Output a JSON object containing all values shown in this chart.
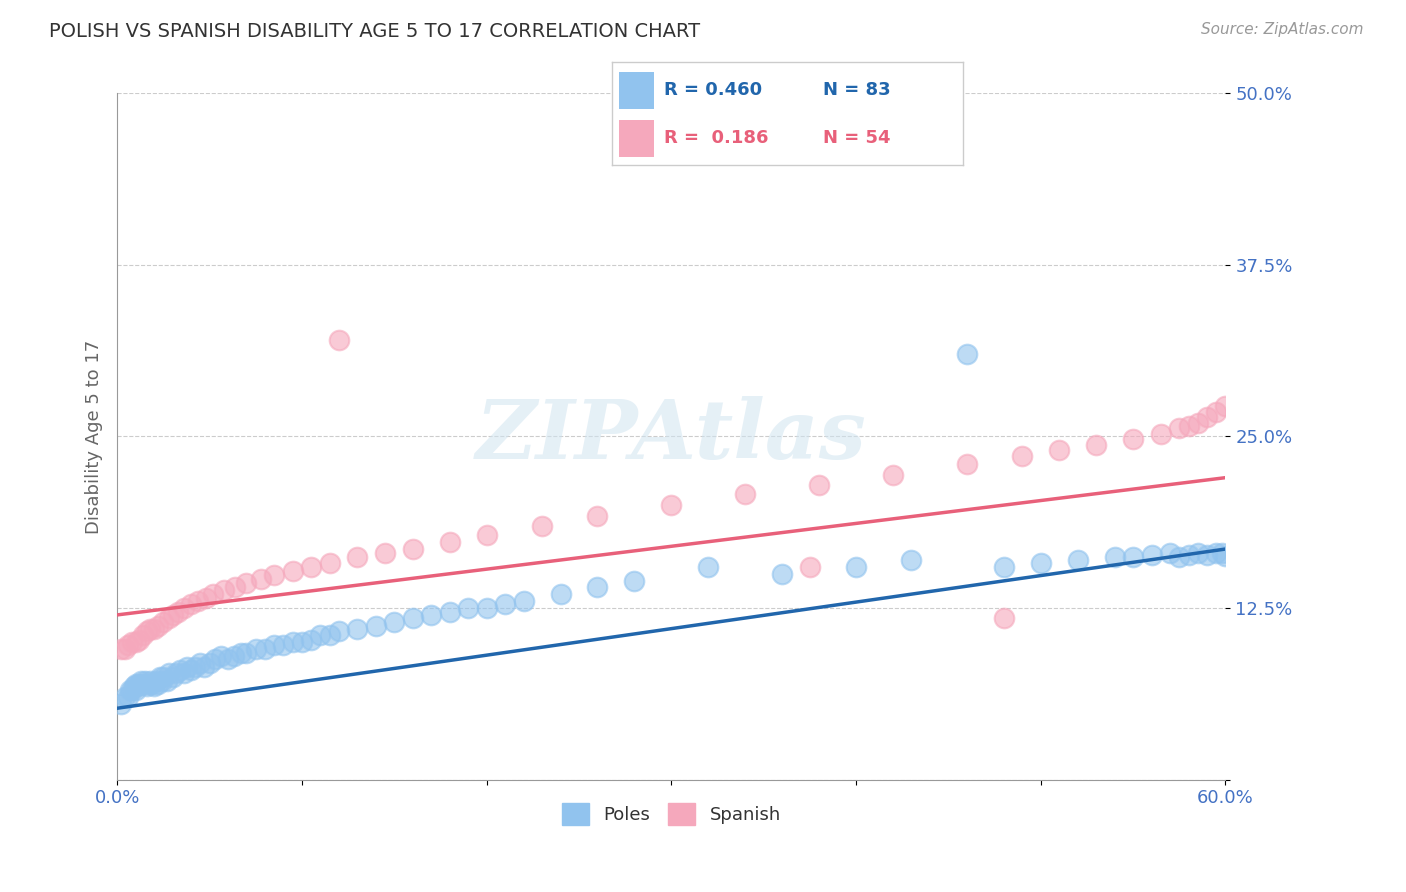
{
  "title": "POLISH VS SPANISH DISABILITY AGE 5 TO 17 CORRELATION CHART",
  "source_text": "Source: ZipAtlas.com",
  "ylabel": "Disability Age 5 to 17",
  "xlim": [
    0.0,
    0.6
  ],
  "ylim": [
    0.0,
    0.5
  ],
  "xticks": [
    0.0,
    0.1,
    0.2,
    0.3,
    0.4,
    0.5,
    0.6
  ],
  "yticks": [
    0.0,
    0.125,
    0.25,
    0.375,
    0.5
  ],
  "ytick_labels": [
    "",
    "12.5%",
    "25.0%",
    "37.5%",
    "50.0%"
  ],
  "xtick_labels": [
    "0.0%",
    "",
    "",
    "",
    "",
    "",
    "60.0%"
  ],
  "poles_R": 0.46,
  "poles_N": 83,
  "spanish_R": 0.186,
  "spanish_N": 54,
  "poles_color": "#91C3EE",
  "spanish_color": "#F5A8BC",
  "poles_line_color": "#2166AC",
  "spanish_line_color": "#E8607A",
  "legend_poles_label": "Poles",
  "legend_spanish_label": "Spanish",
  "background_color": "#ffffff",
  "grid_color": "#cccccc",
  "tick_color": "#4472C4",
  "poles_x": [
    0.002,
    0.004,
    0.006,
    0.007,
    0.008,
    0.009,
    0.01,
    0.01,
    0.011,
    0.012,
    0.013,
    0.014,
    0.015,
    0.016,
    0.017,
    0.018,
    0.019,
    0.02,
    0.021,
    0.022,
    0.023,
    0.024,
    0.025,
    0.027,
    0.028,
    0.03,
    0.032,
    0.034,
    0.036,
    0.038,
    0.04,
    0.042,
    0.045,
    0.047,
    0.05,
    0.053,
    0.056,
    0.06,
    0.063,
    0.067,
    0.07,
    0.075,
    0.08,
    0.085,
    0.09,
    0.095,
    0.1,
    0.105,
    0.11,
    0.115,
    0.12,
    0.13,
    0.14,
    0.15,
    0.16,
    0.17,
    0.18,
    0.19,
    0.2,
    0.21,
    0.22,
    0.24,
    0.26,
    0.28,
    0.32,
    0.36,
    0.4,
    0.43,
    0.46,
    0.48,
    0.5,
    0.52,
    0.54,
    0.55,
    0.56,
    0.57,
    0.575,
    0.58,
    0.585,
    0.59,
    0.595,
    0.598,
    0.6
  ],
  "poles_y": [
    0.055,
    0.06,
    0.06,
    0.065,
    0.065,
    0.068,
    0.065,
    0.07,
    0.068,
    0.07,
    0.072,
    0.07,
    0.072,
    0.068,
    0.07,
    0.072,
    0.07,
    0.068,
    0.072,
    0.07,
    0.075,
    0.072,
    0.075,
    0.072,
    0.078,
    0.075,
    0.078,
    0.08,
    0.078,
    0.082,
    0.08,
    0.082,
    0.085,
    0.082,
    0.085,
    0.088,
    0.09,
    0.088,
    0.09,
    0.092,
    0.092,
    0.095,
    0.095,
    0.098,
    0.098,
    0.1,
    0.1,
    0.102,
    0.105,
    0.105,
    0.108,
    0.11,
    0.112,
    0.115,
    0.118,
    0.12,
    0.122,
    0.125,
    0.125,
    0.128,
    0.13,
    0.135,
    0.14,
    0.145,
    0.155,
    0.15,
    0.155,
    0.16,
    0.31,
    0.155,
    0.158,
    0.16,
    0.162,
    0.162,
    0.164,
    0.165,
    0.162,
    0.164,
    0.165,
    0.164,
    0.165,
    0.165,
    0.163
  ],
  "spanish_x": [
    0.002,
    0.004,
    0.006,
    0.008,
    0.01,
    0.012,
    0.014,
    0.016,
    0.018,
    0.02,
    0.022,
    0.025,
    0.028,
    0.03,
    0.033,
    0.036,
    0.04,
    0.044,
    0.048,
    0.052,
    0.058,
    0.064,
    0.07,
    0.078,
    0.085,
    0.095,
    0.105,
    0.115,
    0.13,
    0.145,
    0.16,
    0.18,
    0.2,
    0.23,
    0.26,
    0.3,
    0.34,
    0.38,
    0.42,
    0.46,
    0.49,
    0.51,
    0.53,
    0.55,
    0.565,
    0.575,
    0.58,
    0.585,
    0.59,
    0.595,
    0.6,
    0.375,
    0.48,
    0.12
  ],
  "spanish_y": [
    0.095,
    0.095,
    0.098,
    0.1,
    0.1,
    0.102,
    0.105,
    0.108,
    0.11,
    0.11,
    0.112,
    0.115,
    0.118,
    0.12,
    0.122,
    0.125,
    0.128,
    0.13,
    0.132,
    0.135,
    0.138,
    0.14,
    0.143,
    0.146,
    0.149,
    0.152,
    0.155,
    0.158,
    0.162,
    0.165,
    0.168,
    0.173,
    0.178,
    0.185,
    0.192,
    0.2,
    0.208,
    0.215,
    0.222,
    0.23,
    0.236,
    0.24,
    0.244,
    0.248,
    0.252,
    0.256,
    0.258,
    0.26,
    0.264,
    0.268,
    0.272,
    0.155,
    0.118,
    0.32
  ]
}
